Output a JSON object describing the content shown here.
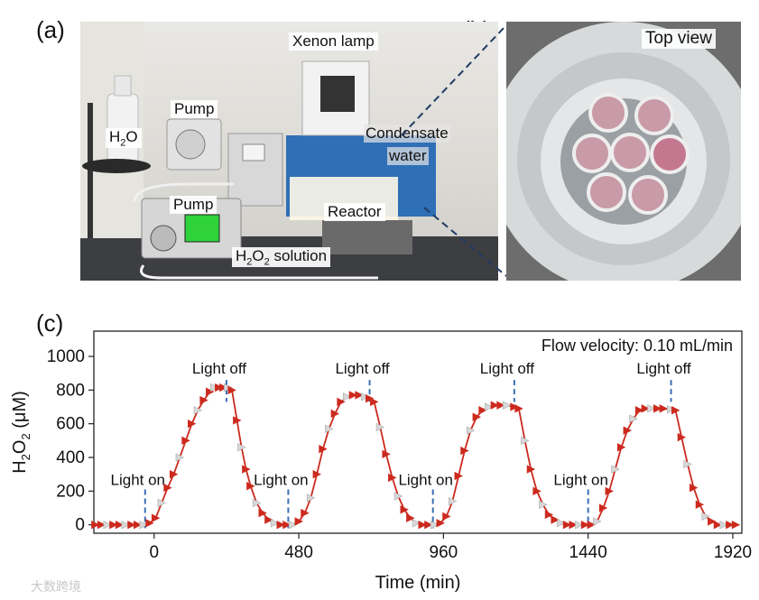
{
  "panel_labels": {
    "a": "(a)",
    "b": "(b)",
    "c": "(c)"
  },
  "photo_a": {
    "labels": {
      "xenon_lamp": "Xenon lamp",
      "pump_top": "Pump",
      "h2o": "H",
      "h2o_sub": "2",
      "h2o_tail": "O",
      "condensate": "Condensate",
      "water": "water",
      "pump_bottom": "Pump",
      "reactor": "Reactor",
      "h2o2_h": "H",
      "h2o2_sub1": "2",
      "h2o2_o": "O",
      "h2o2_sub2": "2",
      "h2o2_tail": " solution"
    }
  },
  "photo_b": {
    "label": "Top view"
  },
  "watermark": "大数跨境",
  "chart_data": {
    "type": "line",
    "annotation": "Flow velocity: 0.10 mL/min",
    "xlabel": "Time (min)",
    "ylabel_parts": [
      "H",
      "2",
      "O",
      "2",
      " (μM)"
    ],
    "xlim": [
      -200,
      1950
    ],
    "ylim": [
      -50,
      1150
    ],
    "xticks": [
      0,
      480,
      960,
      1440,
      1920
    ],
    "yticks": [
      0,
      200,
      400,
      600,
      800,
      1000
    ],
    "line_color": "#cc2a1e",
    "marker_color": "#cc2a1e",
    "alt_marker_color": "#d8d8d8",
    "event_color": "#3a6fb5",
    "events": [
      {
        "label": "Light on",
        "x": -30
      },
      {
        "label": "Light off",
        "x": 240
      },
      {
        "label": "Light on",
        "x": 445
      },
      {
        "label": "Light off",
        "x": 715
      },
      {
        "label": "Light on",
        "x": 925
      },
      {
        "label": "Light off",
        "x": 1195
      },
      {
        "label": "Light on",
        "x": 1440
      },
      {
        "label": "Light off",
        "x": 1715
      }
    ],
    "series": [
      {
        "values": [
          [
            -195,
            0
          ],
          [
            -175,
            0
          ],
          [
            -155,
            0
          ],
          [
            -135,
            0
          ],
          [
            -115,
            0
          ],
          [
            -95,
            0
          ],
          [
            -75,
            0
          ],
          [
            -55,
            0
          ],
          [
            -35,
            0
          ],
          [
            -15,
            10
          ],
          [
            5,
            40
          ],
          [
            25,
            130
          ],
          [
            45,
            220
          ],
          [
            65,
            300
          ],
          [
            85,
            400
          ],
          [
            105,
            500
          ],
          [
            125,
            600
          ],
          [
            145,
            680
          ],
          [
            165,
            740
          ],
          [
            185,
            790
          ],
          [
            200,
            815
          ],
          [
            215,
            815
          ],
          [
            230,
            815
          ],
          [
            245,
            815
          ],
          [
            258,
            800
          ],
          [
            275,
            620
          ],
          [
            290,
            460
          ],
          [
            305,
            330
          ],
          [
            320,
            230
          ],
          [
            340,
            130
          ],
          [
            360,
            70
          ],
          [
            380,
            30
          ],
          [
            400,
            10
          ],
          [
            420,
            0
          ],
          [
            440,
            0
          ],
          [
            460,
            0
          ],
          [
            480,
            20
          ],
          [
            500,
            70
          ],
          [
            520,
            160
          ],
          [
            540,
            300
          ],
          [
            560,
            450
          ],
          [
            580,
            570
          ],
          [
            600,
            660
          ],
          [
            620,
            730
          ],
          [
            640,
            760
          ],
          [
            660,
            770
          ],
          [
            680,
            770
          ],
          [
            700,
            760
          ],
          [
            715,
            750
          ],
          [
            730,
            730
          ],
          [
            750,
            580
          ],
          [
            770,
            420
          ],
          [
            790,
            280
          ],
          [
            810,
            170
          ],
          [
            830,
            90
          ],
          [
            850,
            40
          ],
          [
            870,
            10
          ],
          [
            890,
            0
          ],
          [
            910,
            0
          ],
          [
            930,
            0
          ],
          [
            950,
            10
          ],
          [
            970,
            50
          ],
          [
            990,
            140
          ],
          [
            1010,
            290
          ],
          [
            1030,
            440
          ],
          [
            1050,
            560
          ],
          [
            1070,
            640
          ],
          [
            1090,
            680
          ],
          [
            1110,
            700
          ],
          [
            1130,
            710
          ],
          [
            1150,
            710
          ],
          [
            1170,
            710
          ],
          [
            1195,
            700
          ],
          [
            1210,
            690
          ],
          [
            1230,
            500
          ],
          [
            1250,
            330
          ],
          [
            1270,
            200
          ],
          [
            1290,
            120
          ],
          [
            1310,
            60
          ],
          [
            1330,
            30
          ],
          [
            1350,
            10
          ],
          [
            1370,
            0
          ],
          [
            1390,
            0
          ],
          [
            1410,
            0
          ],
          [
            1430,
            0
          ],
          [
            1450,
            0
          ],
          [
            1470,
            20
          ],
          [
            1490,
            100
          ],
          [
            1510,
            200
          ],
          [
            1530,
            330
          ],
          [
            1550,
            460
          ],
          [
            1570,
            560
          ],
          [
            1590,
            630
          ],
          [
            1610,
            680
          ],
          [
            1630,
            690
          ],
          [
            1650,
            690
          ],
          [
            1670,
            690
          ],
          [
            1690,
            690
          ],
          [
            1715,
            685
          ],
          [
            1730,
            680
          ],
          [
            1750,
            520
          ],
          [
            1770,
            360
          ],
          [
            1790,
            220
          ],
          [
            1810,
            120
          ],
          [
            1830,
            50
          ],
          [
            1850,
            20
          ],
          [
            1870,
            0
          ],
          [
            1890,
            0
          ],
          [
            1910,
            0
          ],
          [
            1930,
            0
          ]
        ]
      }
    ]
  }
}
